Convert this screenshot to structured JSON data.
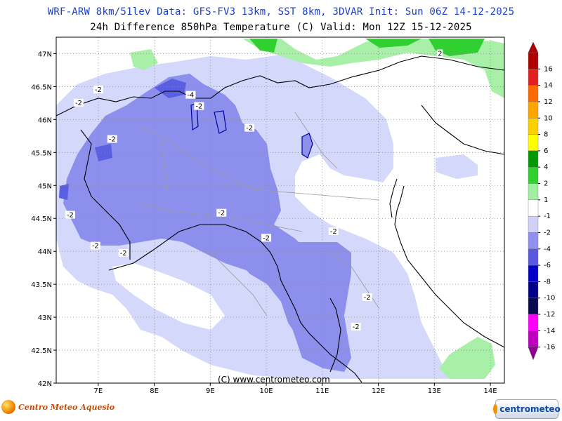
{
  "header": {
    "line1": "WRF-ARW 8km/51lev  Data: GFS-FV3 13km, SST 8km, 3DVAR  Init: Sun 06Z 14-12-2025",
    "line2": "24h Difference 850hPa Temperature (C)  Valid: Mon 12Z 15-12-2025"
  },
  "map": {
    "lon_range": [
      6.25,
      14.25
    ],
    "lat_range": [
      42.0,
      47.25
    ],
    "lon_ticks": [
      "7E",
      "8E",
      "9E",
      "10E",
      "11E",
      "12E",
      "13E",
      "14E"
    ],
    "lat_ticks": [
      "42N",
      "42.5N",
      "43N",
      "43.5N",
      "44N",
      "44.5N",
      "45N",
      "45.5N",
      "46N",
      "46.5N",
      "47N"
    ],
    "grid": true,
    "contour_labels": [
      {
        "text": "2",
        "lon": 13.1,
        "lat": 47.0
      },
      {
        "text": "-2",
        "lon": 7.0,
        "lat": 46.45
      },
      {
        "text": "-2",
        "lon": 6.65,
        "lat": 46.25
      },
      {
        "text": "-4",
        "lon": 8.65,
        "lat": 46.37
      },
      {
        "text": "-2",
        "lon": 8.8,
        "lat": 46.2
      },
      {
        "text": "-2",
        "lon": 7.25,
        "lat": 45.7
      },
      {
        "text": "-2",
        "lon": 9.7,
        "lat": 45.87
      },
      {
        "text": "-2",
        "lon": 9.2,
        "lat": 44.58
      },
      {
        "text": "-2",
        "lon": 6.5,
        "lat": 44.55
      },
      {
        "text": "-2",
        "lon": 6.95,
        "lat": 44.08
      },
      {
        "text": "-2",
        "lon": 7.45,
        "lat": 43.97
      },
      {
        "text": "-2",
        "lon": 10.0,
        "lat": 44.2
      },
      {
        "text": "-2",
        "lon": 11.2,
        "lat": 44.3
      },
      {
        "text": "-2",
        "lon": 11.8,
        "lat": 43.3
      },
      {
        "text": "-2",
        "lon": 11.6,
        "lat": 42.85
      }
    ]
  },
  "colorbar": {
    "labels": [
      "16",
      "14",
      "12",
      "10",
      "8",
      "6",
      "4",
      "2",
      "1",
      "-1",
      "-2",
      "-4",
      "-6",
      "-8",
      "-10",
      "-12",
      "-14",
      "-16"
    ],
    "colors": [
      "#b00000",
      "#e22020",
      "#ff6a00",
      "#ffa500",
      "#ffd000",
      "#ffff00",
      "#009a00",
      "#30d030",
      "#a0f0a0",
      "#ffffff",
      "#d0d0f8",
      "#9090ee",
      "#5858e0",
      "#0000c8",
      "#00008a",
      "#0a0a50",
      "#ff00ff",
      "#c000c0",
      "#900090"
    ]
  },
  "field_colors": {
    "neg2": "#d0d4f8",
    "neg4": "#8c90ec",
    "neg6": "#5a5ee0",
    "pos2": "#a8f0a8",
    "pos4": "#30d030"
  },
  "credit": "(C) www.centrometeo.com",
  "logos": {
    "left": "Centro Meteo Aquesio",
    "right": "centrometeo"
  }
}
